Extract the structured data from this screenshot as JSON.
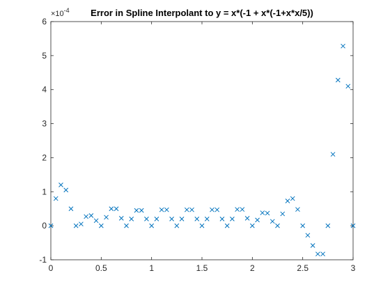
{
  "chart_data": {
    "type": "scatter",
    "title": "Error in Spline Interpolant to y = x*(-1 + x*(-1+x*x/5))",
    "y_multiplier": {
      "base": "×10",
      "exponent": "-4"
    },
    "marker": "x",
    "series": [
      {
        "color": "#0072bd",
        "x": [
          0,
          0.05,
          0.1,
          0.15,
          0.2,
          0.25,
          0.3,
          0.35,
          0.4,
          0.45,
          0.5,
          0.55,
          0.6,
          0.65,
          0.7,
          0.75,
          0.8,
          0.85,
          0.9,
          0.95,
          1,
          1.05,
          1.1,
          1.15,
          1.2,
          1.25,
          1.3,
          1.35,
          1.4,
          1.45,
          1.5,
          1.55,
          1.6,
          1.65,
          1.7,
          1.75,
          1.8,
          1.85,
          1.9,
          1.95,
          2,
          2.05,
          2.1,
          2.15,
          2.2,
          2.25,
          2.3,
          2.35,
          2.4,
          2.45,
          2.5,
          2.55,
          2.6,
          2.65,
          2.7,
          2.75,
          2.8,
          2.85,
          2.9,
          2.95,
          3
        ],
        "values": [
          0,
          0.8,
          1.2,
          1.05,
          0.5,
          0,
          0.05,
          0.27,
          0.3,
          0.15,
          0,
          0.25,
          0.5,
          0.5,
          0.22,
          0,
          0.2,
          0.45,
          0.45,
          0.2,
          0,
          0.2,
          0.47,
          0.47,
          0.2,
          0,
          0.2,
          0.47,
          0.47,
          0.2,
          0,
          0.2,
          0.47,
          0.47,
          0.2,
          0,
          0.2,
          0.48,
          0.48,
          0.22,
          0,
          0.17,
          0.38,
          0.37,
          0.13,
          0,
          0.35,
          0.73,
          0.8,
          0.48,
          0,
          -0.28,
          -0.58,
          -0.83,
          -0.83,
          0,
          2.1,
          4.28,
          5.28,
          4.1,
          0
        ]
      }
    ],
    "xlim": [
      0,
      3
    ],
    "xticks": [
      0,
      0.5,
      1,
      1.5,
      2,
      2.5,
      3
    ],
    "ylim": [
      -1,
      6
    ],
    "yticks": [
      -1,
      0,
      1,
      2,
      3,
      4,
      5,
      6
    ]
  }
}
